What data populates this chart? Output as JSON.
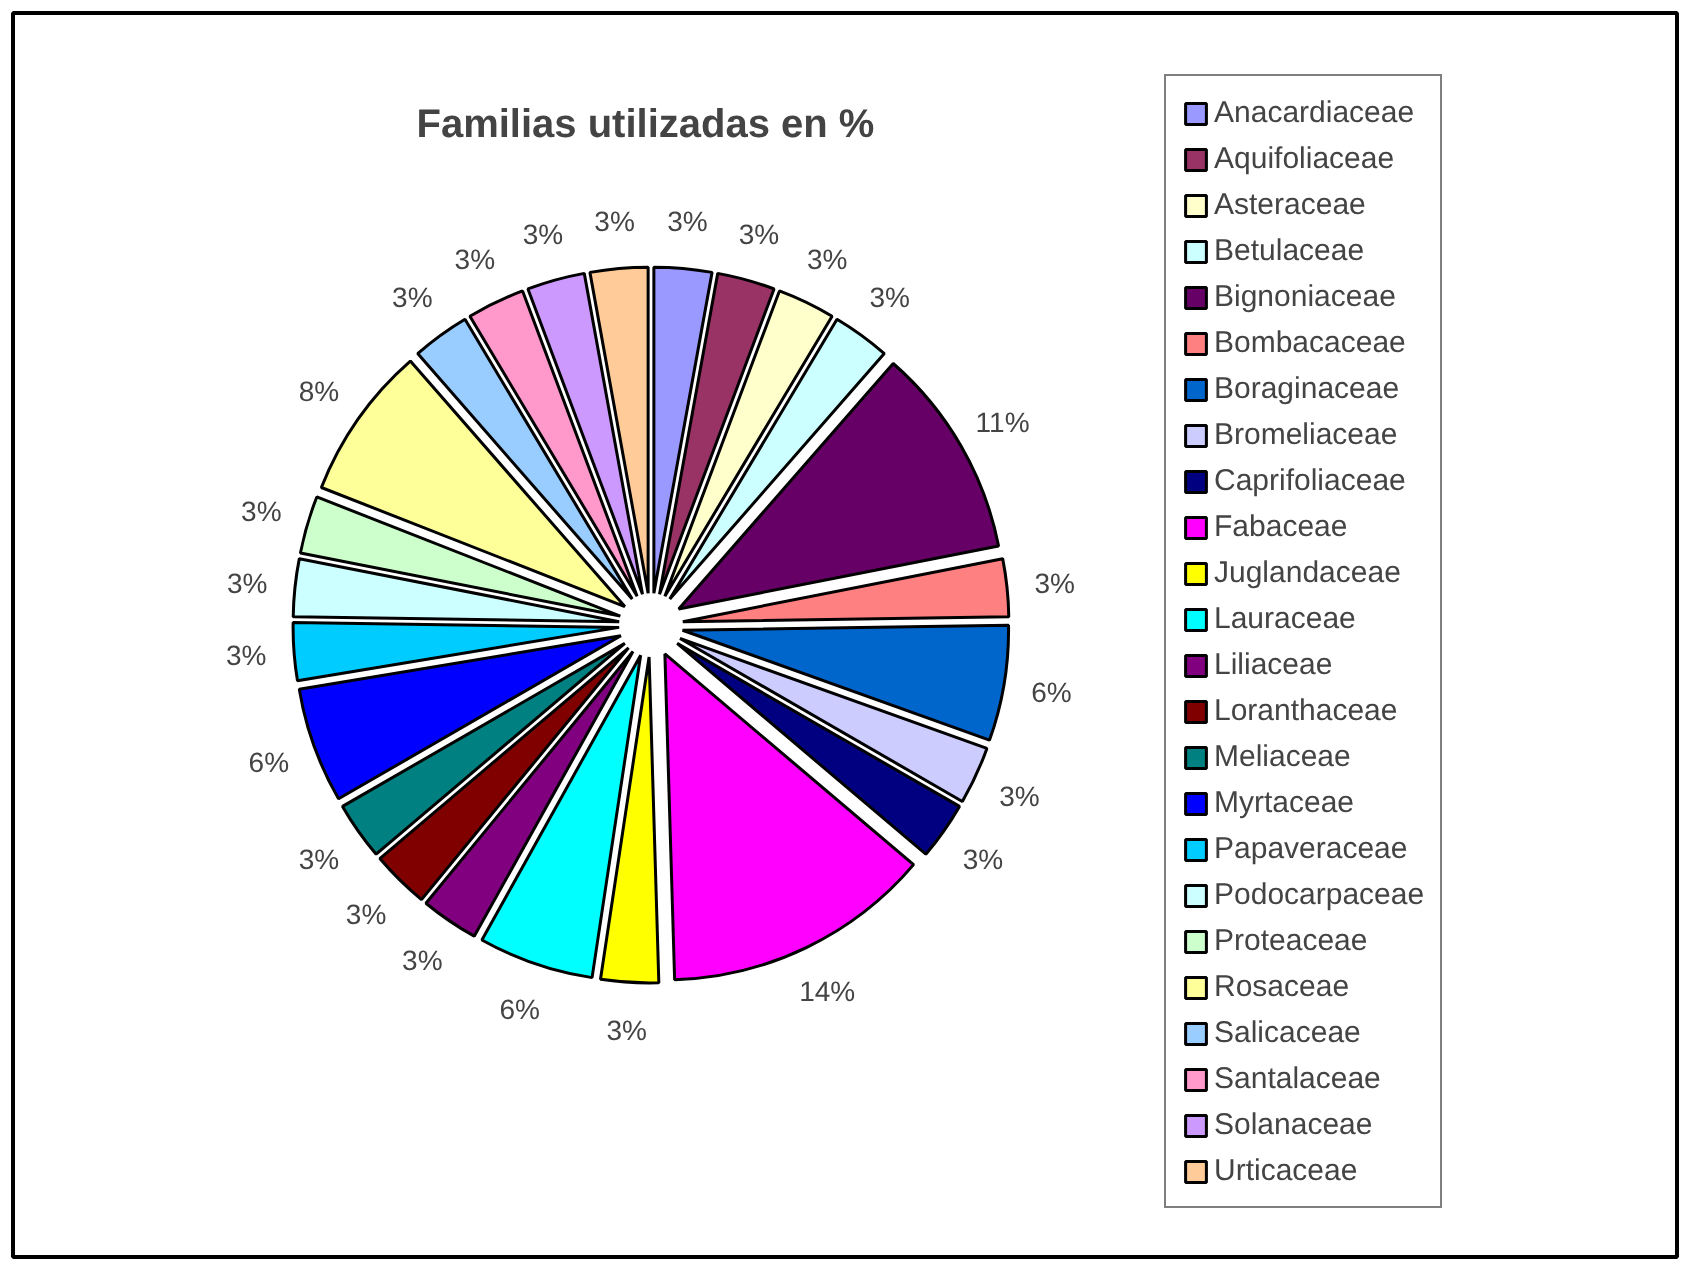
{
  "chart_data": {
    "type": "pie",
    "title": "Familias  utilizadas en %",
    "categories": [
      "Anacardiaceae",
      "Aquifoliaceae",
      "Asteraceae",
      "Betulaceae",
      "Bignoniaceae",
      "Bombacaceae",
      "Boraginaceae",
      "Bromeliaceae",
      "Caprifoliaceae",
      "Fabaceae",
      "Juglandaceae",
      "Lauraceae",
      "Liliaceae",
      "Loranthaceae",
      "Meliaceae",
      "Myrtaceae",
      "Papaveraceae",
      "Podocarpaceae",
      "Proteaceae",
      "Rosaceae",
      "Salicaceae",
      "Santalaceae",
      "Solanaceae",
      "Urticaceae"
    ],
    "values": [
      3,
      3,
      3,
      3,
      11,
      3,
      6,
      3,
      3,
      14,
      3,
      6,
      3,
      3,
      3,
      6,
      3,
      3,
      3,
      8,
      3,
      3,
      3,
      3
    ],
    "value_labels": [
      "3%",
      "3%",
      "3%",
      "3%",
      "11%",
      "3%",
      "6%",
      "3%",
      "3%",
      "14%",
      "3%",
      "6%",
      "3%",
      "3%",
      "3%",
      "6%",
      "3%",
      "3%",
      "3%",
      "8%",
      "3%",
      "3%",
      "3%",
      "3%"
    ],
    "colors": [
      "#9999ff",
      "#993366",
      "#ffffcc",
      "#ccffff",
      "#660066",
      "#ff8080",
      "#0066cc",
      "#ccccff",
      "#000080",
      "#ff00ff",
      "#ffff00",
      "#00ffff",
      "#800080",
      "#800000",
      "#008080",
      "#0000ff",
      "#00ccff",
      "#ccffff",
      "#ccffcc",
      "#ffff99",
      "#99ccff",
      "#ff99cc",
      "#cc99ff",
      "#ffcc99"
    ],
    "legend": "right"
  }
}
